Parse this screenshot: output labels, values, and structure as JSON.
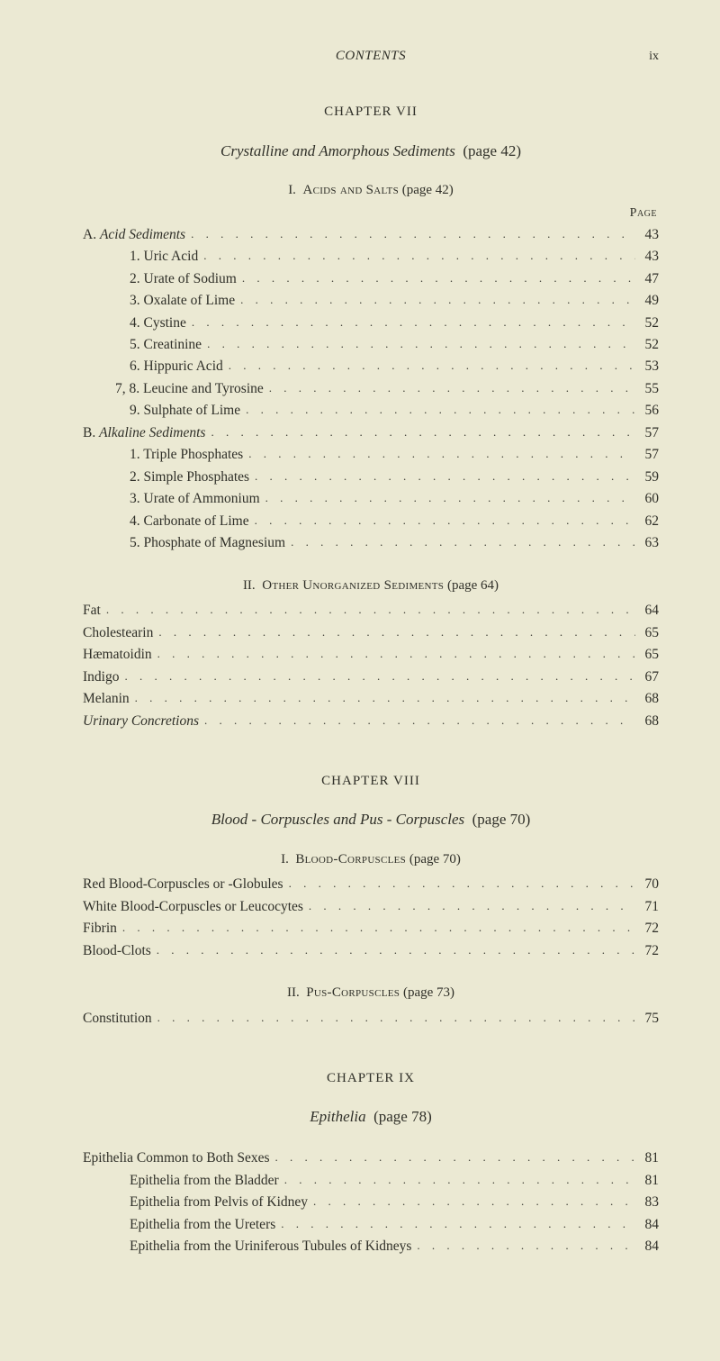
{
  "runningHead": {
    "title": "CONTENTS",
    "pageNumeral": "ix"
  },
  "pageLabel": "Page",
  "chapters": [
    {
      "chapterLine": "CHAPTER VII",
      "titleItalic": "Crystalline and Amorphous Sediments",
      "titleParen": "(page 42)",
      "sections": [
        {
          "headingNum": "I.",
          "headingCaps": "Acids and Salts",
          "headingParen": "(page 42)",
          "showPageLabel": true,
          "rows": [
            {
              "indent": "indent-0",
              "pre": "A. ",
              "italic": "Acid Sediments",
              "post": "",
              "page": "43"
            },
            {
              "indent": "indent-1",
              "pre": "1. Uric Acid",
              "page": "43"
            },
            {
              "indent": "indent-1",
              "pre": "2. Urate of Sodium",
              "page": "47"
            },
            {
              "indent": "indent-1",
              "pre": "3. Oxalate of Lime",
              "page": "49"
            },
            {
              "indent": "indent-1",
              "pre": "4. Cystine",
              "page": "52"
            },
            {
              "indent": "indent-1",
              "pre": "5. Creatinine",
              "page": "52"
            },
            {
              "indent": "indent-1",
              "pre": "6. Hippuric Acid",
              "page": "53"
            },
            {
              "indent": "indent-1b",
              "pre": "7, 8. Leucine and Tyrosine",
              "page": "55"
            },
            {
              "indent": "indent-1",
              "pre": "9. Sulphate of Lime",
              "page": "56"
            },
            {
              "indent": "indent-0",
              "pre": "B. ",
              "italic": "Alkaline Sediments",
              "post": "",
              "page": "57"
            },
            {
              "indent": "indent-1",
              "pre": "1. Triple Phosphates",
              "page": "57"
            },
            {
              "indent": "indent-1",
              "pre": "2. Simple Phosphates",
              "page": "59"
            },
            {
              "indent": "indent-1",
              "pre": "3. Urate of Ammonium",
              "page": "60"
            },
            {
              "indent": "indent-1",
              "pre": "4. Carbonate of Lime",
              "page": "62"
            },
            {
              "indent": "indent-1",
              "pre": "5. Phosphate of Magnesium",
              "page": "63"
            }
          ]
        },
        {
          "headingNum": "II.",
          "headingCaps": "Other Unorganized Sediments",
          "headingParen": "(page 64)",
          "rows": [
            {
              "indent": "indent-0",
              "pre": "Fat",
              "page": "64"
            },
            {
              "indent": "indent-0",
              "pre": "Cholestearin",
              "page": "65"
            },
            {
              "indent": "indent-0",
              "pre": "Hæmatoidin",
              "page": "65"
            },
            {
              "indent": "indent-0",
              "pre": "Indigo",
              "page": "67"
            },
            {
              "indent": "indent-0",
              "pre": "Melanin",
              "page": "68"
            },
            {
              "indent": "indent-0",
              "pre": "",
              "italic": "Urinary Concretions",
              "post": "",
              "page": "68"
            }
          ]
        }
      ]
    },
    {
      "chapterLine": "CHAPTER VIII",
      "titleItalic": "Blood - Corpuscles and Pus - Corpuscles",
      "titleParen": "(page 70)",
      "sections": [
        {
          "headingNum": "I.",
          "headingCaps": "Blood-Corpuscles",
          "headingParen": "(page 70)",
          "rows": [
            {
              "indent": "indent-0",
              "pre": "Red Blood-Corpuscles or -Globules",
              "page": "70"
            },
            {
              "indent": "indent-0",
              "pre": "White Blood-Corpuscles or Leucocytes",
              "page": "71"
            },
            {
              "indent": "indent-0",
              "pre": "Fibrin",
              "page": "72"
            },
            {
              "indent": "indent-0",
              "pre": "Blood-Clots",
              "page": "72"
            }
          ]
        },
        {
          "headingNum": "II.",
          "headingCaps": "Pus-Corpuscles",
          "headingParen": "(page 73)",
          "rows": [
            {
              "indent": "indent-0",
              "pre": "Constitution",
              "page": "75"
            }
          ]
        }
      ]
    },
    {
      "chapterLine": "CHAPTER IX",
      "titleItalic": "Epithelia",
      "titleParen": "(page 78)",
      "sections": [
        {
          "rows": [
            {
              "indent": "indent-0",
              "pre": "Epithelia Common to Both Sexes",
              "page": "81"
            },
            {
              "indent": "indent-1",
              "pre": "Epithelia from the Bladder",
              "page": "81"
            },
            {
              "indent": "indent-1",
              "pre": "Epithelia from Pelvis of Kidney",
              "page": "83"
            },
            {
              "indent": "indent-1",
              "pre": "Epithelia from the Ureters",
              "page": "84"
            },
            {
              "indent": "indent-1",
              "pre": "Epithelia from the Uriniferous Tubules of Kidneys",
              "page": "84"
            }
          ]
        }
      ]
    }
  ],
  "leaders": ". . . . . . . . . . . . . . . . . . . . . . . . . . . . . . . . . . . . . . . . . . . . . . . . . . . . . . . . . . . . . . . . . . . . . ."
}
